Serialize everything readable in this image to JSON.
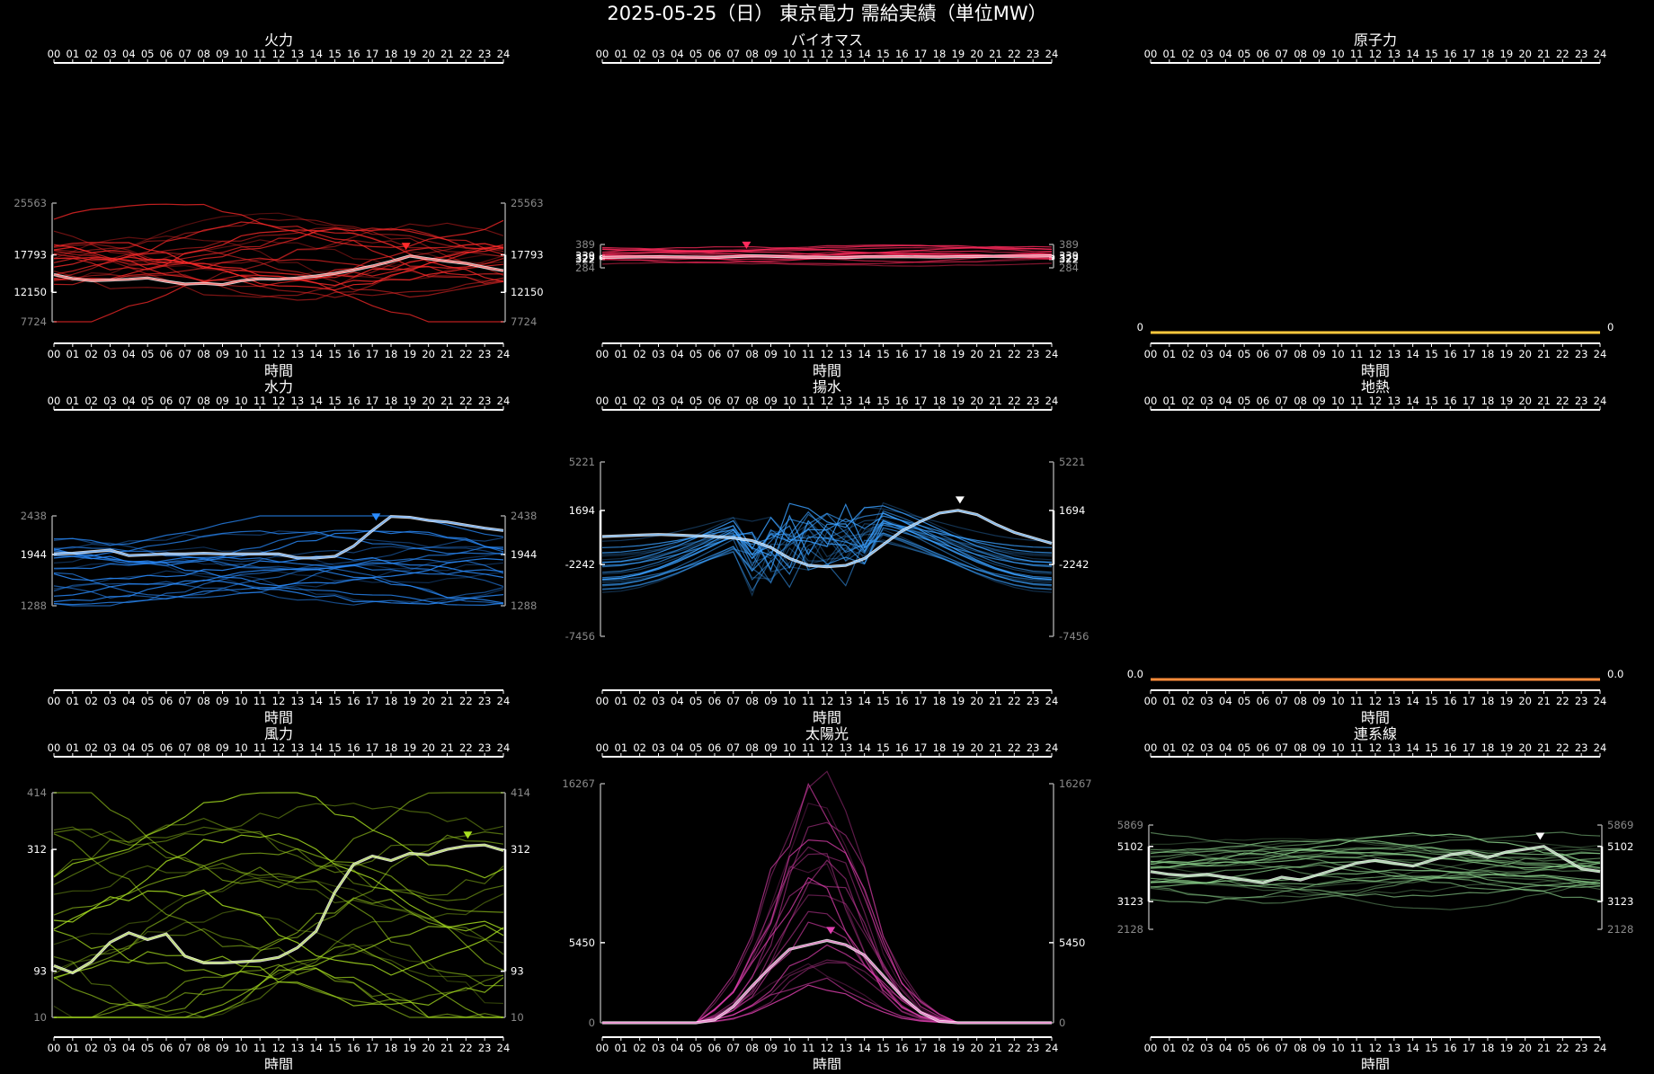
{
  "title": "2025-05-25（日） 東京電力 需給実績（単位MW）",
  "hours": [
    "00",
    "01",
    "02",
    "03",
    "04",
    "05",
    "06",
    "07",
    "08",
    "09",
    "10",
    "11",
    "12",
    "13",
    "14",
    "15",
    "16",
    "17",
    "18",
    "19",
    "20",
    "21",
    "22",
    "23",
    "24"
  ],
  "chart_data": [
    {
      "type": "line",
      "title": "火力",
      "xlabel": "時間",
      "ylim": [
        7724,
        25563
      ],
      "ylabels": [
        "25563",
        "17793",
        "12150",
        "7724"
      ],
      "ymarks": [
        25563,
        17793,
        12150,
        7724
      ],
      "color": "#ff2a2a",
      "bg_count": 24,
      "bg_band": [
        10000,
        24500
      ],
      "marker_x": 18.8,
      "today": [
        14800,
        14200,
        13900,
        14000,
        14100,
        14300,
        13800,
        13400,
        13500,
        13300,
        13900,
        14200,
        14100,
        14300,
        14600,
        15000,
        15500,
        16100,
        16800,
        17600,
        17200,
        16800,
        16500,
        15900,
        15400
      ]
    },
    {
      "type": "line",
      "title": "バイオマス",
      "xlabel": "時間",
      "ylim": [
        284,
        389
      ],
      "ylabels": [
        "389",
        "339",
        "329",
        "322",
        "284"
      ],
      "ymarks": [
        389,
        339,
        329,
        322,
        284
      ],
      "color": "#ff2a5c",
      "bg_count": 18,
      "bg_band": [
        300,
        375
      ],
      "marker_x": 7.7,
      "today": [
        331,
        332,
        333,
        334,
        333,
        332,
        331,
        334,
        338,
        336,
        333,
        332,
        331,
        330,
        333,
        333,
        334,
        333,
        332,
        334,
        335,
        336,
        336,
        337,
        338
      ]
    },
    {
      "type": "line",
      "title": "原子力",
      "xlabel": "時間",
      "ylim": [
        0,
        1
      ],
      "ylabels": [
        "0"
      ],
      "ymarks": [
        0
      ],
      "color": "#ffc83d",
      "flat": true
    },
    {
      "type": "line",
      "title": "水力",
      "xlabel": "時間",
      "ylim": [
        1288,
        2438
      ],
      "ylabels": [
        "2438",
        "1944",
        "1288"
      ],
      "ymarks": [
        2438,
        1944,
        1288
      ],
      "color": "#2a8cff",
      "bg_count": 22,
      "bg_band": [
        1350,
        2350
      ],
      "marker_x": 17.2,
      "today": [
        1950,
        1960,
        1980,
        2000,
        1930,
        1940,
        1950,
        1950,
        1960,
        1950,
        1950,
        1950,
        1950,
        1900,
        1900,
        1920,
        2050,
        2250,
        2430,
        2420,
        2380,
        2360,
        2320,
        2280,
        2250
      ]
    },
    {
      "type": "line",
      "title": "揚水",
      "xlabel": "時間",
      "ylim": [
        -7456,
        5221
      ],
      "ylabels": [
        "5221",
        "1694",
        "-2242",
        "-7456"
      ],
      "ymarks": [
        5221,
        1694,
        -2242,
        -7456
      ],
      "color": "#3aa0ff",
      "bg_count": 24,
      "bg_band": [
        -6500,
        4000
      ],
      "marker_x": 19.1,
      "today": [
        -200,
        -150,
        -100,
        -50,
        -100,
        -150,
        -200,
        -300,
        -500,
        -1000,
        -1800,
        -2300,
        -2400,
        -2300,
        -1800,
        -800,
        200,
        900,
        1500,
        1700,
        1400,
        700,
        100,
        -300,
        -700
      ]
    },
    {
      "type": "line",
      "title": "地熱",
      "xlabel": "時間",
      "ylim": [
        0,
        1
      ],
      "ylabels": [
        "0.0"
      ],
      "ymarks": [
        0
      ],
      "color": "#ff8c3a",
      "flat": true
    },
    {
      "type": "line",
      "title": "風力",
      "xlabel": "時間",
      "ylim": [
        10,
        414
      ],
      "ylabels": [
        "414",
        "312",
        "93",
        "10"
      ],
      "ymarks": [
        414,
        312,
        93,
        10
      ],
      "color": "#a8e020",
      "bg_count": 24,
      "bg_band": [
        15,
        380
      ],
      "marker_x": 22.1,
      "today": [
        103,
        90,
        110,
        145,
        162,
        150,
        160,
        120,
        108,
        108,
        110,
        112,
        118,
        135,
        165,
        235,
        285,
        300,
        292,
        305,
        302,
        312,
        318,
        320,
        310
      ]
    },
    {
      "type": "line",
      "title": "太陽光",
      "xlabel": "時間",
      "ylim": [
        0,
        16267
      ],
      "ylabels": [
        "16267",
        "5450",
        "0"
      ],
      "ymarks": [
        16267,
        5450,
        0
      ],
      "color": "#e040b0",
      "bg_count": 20,
      "bg_band": [
        0,
        16000
      ],
      "marker_x": 12.2,
      "today": [
        0,
        0,
        0,
        0,
        0,
        0,
        200,
        1100,
        2500,
        3800,
        5000,
        5300,
        5600,
        5300,
        4600,
        3200,
        1800,
        700,
        100,
        0,
        0,
        0,
        0,
        0,
        0
      ],
      "solar": true
    },
    {
      "type": "line",
      "title": "連系線",
      "xlabel": "時間",
      "ylim": [
        2128,
        5869
      ],
      "ylabels": [
        "5869",
        "5102",
        "3123",
        "2128"
      ],
      "ymarks": [
        5869,
        5102,
        3123,
        2128
      ],
      "color": "#8ad08a",
      "bg_count": 26,
      "bg_band": [
        3200,
        5300
      ],
      "marker_x": 20.8,
      "today": [
        4200,
        4100,
        4050,
        4100,
        4000,
        3900,
        3800,
        4000,
        3900,
        4100,
        4300,
        4500,
        4600,
        4500,
        4400,
        4600,
        4800,
        4900,
        4700,
        4900,
        5000,
        5100,
        4700,
        4300,
        4200
      ]
    }
  ]
}
